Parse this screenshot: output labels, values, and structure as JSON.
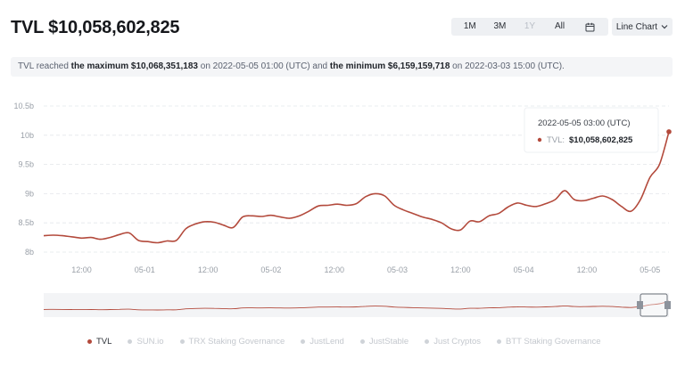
{
  "header": {
    "title": "TVL $10,058,602,825"
  },
  "range_buttons": [
    {
      "label": "1M",
      "disabled": false
    },
    {
      "label": "3M",
      "disabled": false
    },
    {
      "label": "1Y",
      "disabled": true
    },
    {
      "label": "All",
      "disabled": false
    }
  ],
  "chart_type_select": {
    "label": "Line Chart"
  },
  "summary": {
    "prefix": "TVL reached ",
    "max_label": "the maximum $10,068,351,183",
    "max_time": " on 2022-05-05 01:00 (UTC) and ",
    "min_label": "the minimum $6,159,159,718",
    "min_time": " on 2022-03-03 15:00 (UTC)."
  },
  "tooltip": {
    "time": "2022-05-05 03:00 (UTC)",
    "series_label": "TVL:",
    "value": "$10,058,602,825"
  },
  "legend": [
    {
      "label": "TVL",
      "active": true
    },
    {
      "label": "SUN.io",
      "active": false
    },
    {
      "label": "TRX Staking Governance",
      "active": false
    },
    {
      "label": "JustLend",
      "active": false
    },
    {
      "label": "JustStable",
      "active": false
    },
    {
      "label": "Just Cryptos",
      "active": false
    },
    {
      "label": "BTT Staking Governance",
      "active": false
    }
  ],
  "colors": {
    "line": "#b34a3c",
    "grid": "#e3e6ea",
    "axis_text": "#9aa0a8"
  },
  "chart_data": {
    "type": "line",
    "title": "",
    "x_ticks": [
      "12:00",
      "05-01",
      "12:00",
      "05-02",
      "12:00",
      "05-03",
      "12:00",
      "05-04",
      "12:00",
      "05-05"
    ],
    "y_ticks": [
      "8b",
      "8.5b",
      "9b",
      "9.5b",
      "10b",
      "10.5b"
    ],
    "ylim": [
      8000000000,
      10500000000
    ],
    "grid": true,
    "series": [
      {
        "name": "TVL",
        "time_hours": [
          0,
          3,
          6,
          9,
          12,
          15,
          18,
          21,
          24,
          27,
          30,
          33,
          36,
          39,
          42,
          45,
          48,
          51,
          54,
          57,
          60,
          63,
          66,
          69,
          72,
          75,
          78,
          81,
          84,
          87,
          90,
          93,
          96,
          99,
          102,
          105,
          108,
          111,
          114,
          117,
          120,
          123,
          126,
          129,
          132,
          135,
          138,
          141,
          144,
          147,
          150,
          153,
          156,
          159,
          162,
          165,
          168,
          171,
          174,
          177,
          180,
          183,
          186,
          189,
          192,
          195,
          198
        ],
        "values_billions": [
          8.28,
          8.29,
          8.28,
          8.26,
          8.24,
          8.25,
          8.22,
          8.25,
          8.3,
          8.33,
          8.2,
          8.18,
          8.16,
          8.19,
          8.2,
          8.4,
          8.48,
          8.52,
          8.51,
          8.46,
          8.42,
          8.6,
          8.62,
          8.61,
          8.63,
          8.6,
          8.58,
          8.62,
          8.7,
          8.79,
          8.8,
          8.82,
          8.8,
          8.83,
          8.95,
          9.0,
          8.96,
          8.8,
          8.72,
          8.66,
          8.6,
          8.56,
          8.5,
          8.4,
          8.38,
          8.53,
          8.52,
          8.62,
          8.66,
          8.77,
          8.84,
          8.8,
          8.78,
          8.83,
          8.9,
          9.05,
          8.9,
          8.88,
          8.92,
          8.96,
          8.9,
          8.78,
          8.7,
          8.9,
          9.28,
          9.5,
          10.06
        ]
      }
    ]
  }
}
